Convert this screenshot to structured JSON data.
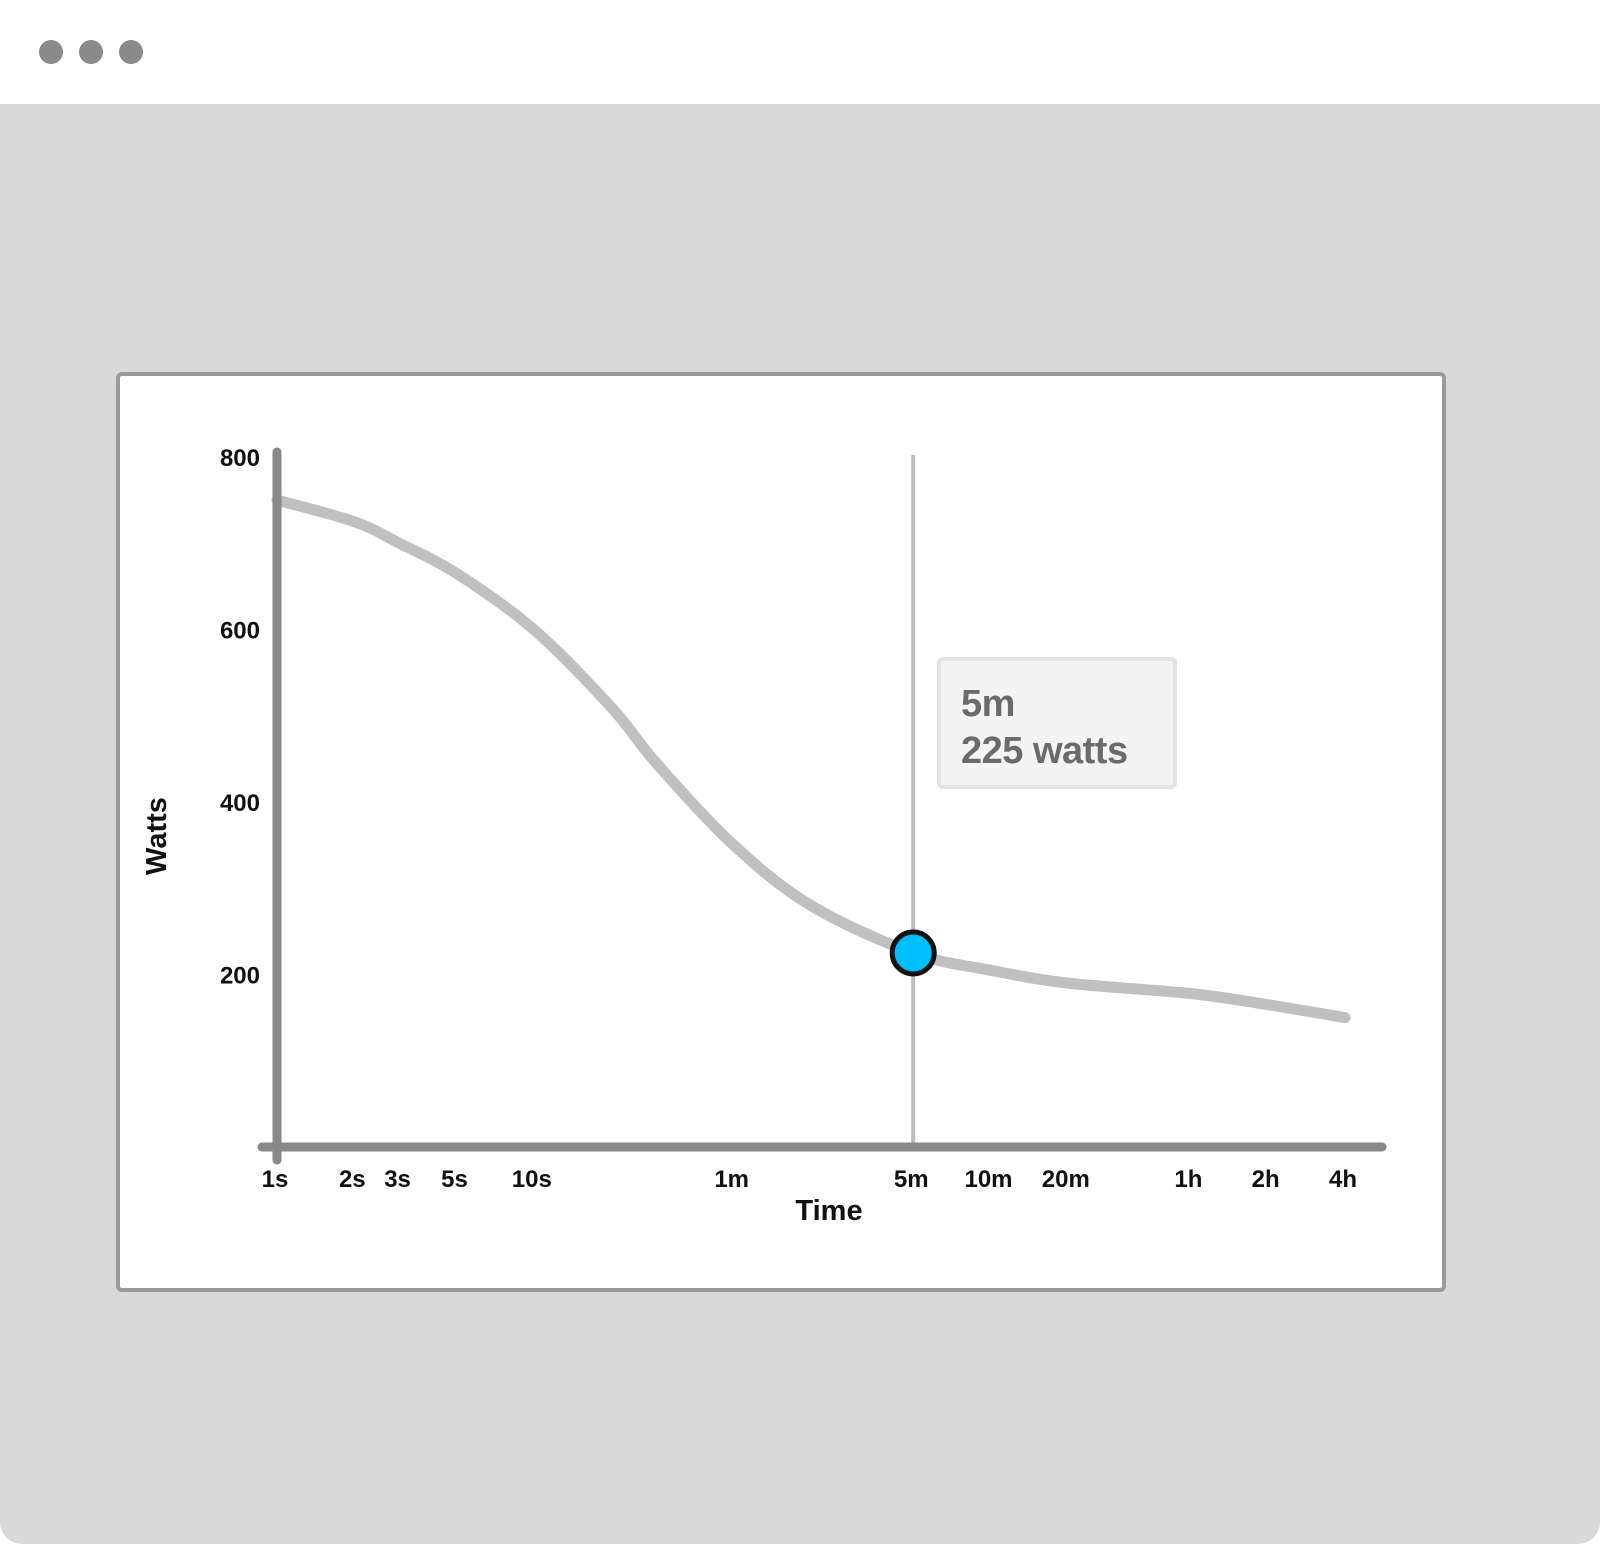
{
  "window": {
    "controls": [
      "window-dot",
      "window-dot",
      "window-dot"
    ],
    "dot_color": "#8a8a8a",
    "background_color": "#d9d9d9"
  },
  "tooltip": {
    "time": "5m",
    "value": "225 watts"
  },
  "colors": {
    "curve": "#c0c0c0",
    "axis": "#888888",
    "cursor_line": "#bdbdbd",
    "marker_fill": "#00bfff",
    "marker_stroke": "#111111"
  },
  "chart_data": {
    "type": "line",
    "title": "",
    "xlabel": "Time",
    "ylabel": "Watts",
    "x_scale": "log",
    "x_tick_labels": [
      "1s",
      "2s",
      "3s",
      "5s",
      "10s",
      "1m",
      "5m",
      "10m",
      "20m",
      "1h",
      "2h",
      "4h"
    ],
    "y_ticks": [
      200,
      400,
      600,
      800
    ],
    "ylim": [
      0,
      800
    ],
    "grid": false,
    "legend": "none",
    "series": [
      {
        "x": [
          "1s",
          "2s",
          "3s",
          "5s",
          "10s",
          "20s",
          "30s",
          "1m",
          "2m",
          "5m",
          "10m",
          "20m",
          "1h",
          "2h",
          "4h"
        ],
        "y": [
          750,
          725,
          700,
          665,
          600,
          510,
          445,
          350,
          280,
          225,
          205,
          190,
          178,
          165,
          150
        ]
      }
    ],
    "highlight": {
      "x": "5m",
      "y": 225
    }
  }
}
